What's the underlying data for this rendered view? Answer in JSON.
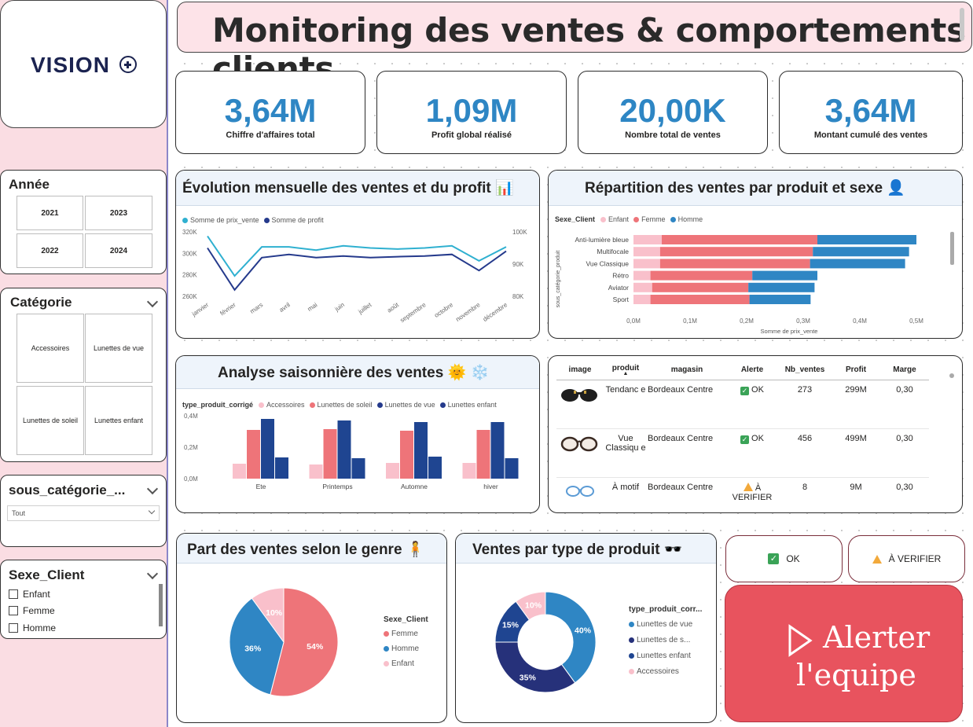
{
  "logo": {
    "text": "VISION"
  },
  "title": "Monitoring des ventes & comportements clients",
  "filters": {
    "annee": {
      "title": "Année",
      "options": [
        "2021",
        "2023",
        "2022",
        "2024"
      ]
    },
    "categorie": {
      "title": "Catégorie",
      "options": [
        "Accessoires",
        "Lunettes de vue",
        "Lunettes de soleil",
        "Lunettes enfant"
      ]
    },
    "sous_categorie": {
      "title": "sous_catégorie_...",
      "value": "Tout"
    },
    "sexe": {
      "title": "Sexe_Client",
      "options": [
        "Enfant",
        "Femme",
        "Homme"
      ]
    }
  },
  "kpis": [
    {
      "value": "3,64M",
      "label": "Chiffre d'affaires total"
    },
    {
      "value": "1,09M",
      "label": "Profit global réalisé"
    },
    {
      "value": "20,00K",
      "label": "Nombre total de ventes"
    },
    {
      "value": "3,64M",
      "label": "Montant cumulé des ventes"
    }
  ],
  "visual_titles": {
    "evolution": "Évolution mensuelle des ventes et du profit 📊",
    "repartition": "Répartition des ventes par produit et sexe 👤",
    "saison": "Analyse saisonnière des ventes 🌞 ❄️",
    "genre": "Part des ventes selon le genre 🧍",
    "type": "Ventes par type de produit 🕶️"
  },
  "colors": {
    "kpi_blue": "#2e86c4",
    "prix": "#2fb0d0",
    "profit": "#253a8c",
    "enfant": "#f9c0cb",
    "femme": "#ee7479",
    "homme": "#2f86c4",
    "accessoires": "#f9c0cb",
    "soleil": "#ee7479",
    "vue": "#1f4591",
    "enfant_type": "#1f4591",
    "alert": "#e8535e"
  },
  "chart_data": [
    {
      "type": "line",
      "legend": [
        "Somme de prix_vente",
        "Somme de profit"
      ],
      "categories": [
        "janvier",
        "février",
        "mars",
        "avril",
        "mai",
        "juin",
        "juillet",
        "août",
        "septembre",
        "octobre",
        "novembre",
        "décembre"
      ],
      "series": [
        {
          "name": "Somme de prix_vente",
          "axis": "left",
          "values": [
            316,
            279,
            306,
            306,
            303,
            307,
            305,
            304,
            305,
            307,
            293,
            306
          ]
        },
        {
          "name": "Somme de profit",
          "axis": "right",
          "values": [
            95,
            82,
            92,
            93,
            92,
            92.5,
            92,
            92.3,
            92.5,
            93,
            88,
            94
          ]
        }
      ],
      "y_left_ticks": [
        "320K",
        "300K",
        "280K",
        "260K"
      ],
      "y_left_range": [
        260,
        320
      ],
      "y_right_ticks": [
        "100K",
        "90K",
        "80K"
      ],
      "y_right_range": [
        80,
        100
      ]
    },
    {
      "type": "bar",
      "orientation": "horizontal-stacked",
      "legend_title": "Sexe_Client",
      "legend": [
        "Enfant",
        "Femme",
        "Homme"
      ],
      "categories": [
        "Anti-lumière bleue",
        "Multifocale",
        "Vue Classique",
        "Rétro",
        "Aviator",
        "Sport"
      ],
      "series": [
        {
          "name": "Enfant",
          "values": [
            0.05,
            0.047,
            0.047,
            0.03,
            0.033,
            0.03
          ]
        },
        {
          "name": "Femme",
          "values": [
            0.275,
            0.27,
            0.265,
            0.18,
            0.17,
            0.175
          ]
        },
        {
          "name": "Homme",
          "values": [
            0.175,
            0.17,
            0.168,
            0.115,
            0.117,
            0.108
          ]
        }
      ],
      "x_ticks": [
        "0,0M",
        "0,1M",
        "0,2M",
        "0,3M",
        "0,4M",
        "0,5M"
      ],
      "xlim": [
        0,
        0.5
      ],
      "xlabel": "Somme de prix_vente",
      "ylabel": "sous_catégorie_produit"
    },
    {
      "type": "bar",
      "legend_title": "type_produit_corrigé",
      "legend": [
        "Accessoires",
        "Lunettes de soleil",
        "Lunettes de vue",
        "Lunettes enfant"
      ],
      "categories": [
        "Ete",
        "Printemps",
        "Automne",
        "hiver"
      ],
      "series": [
        {
          "name": "Accessoires",
          "values": [
            0.095,
            0.09,
            0.1,
            0.1
          ]
        },
        {
          "name": "Lunettes de soleil",
          "values": [
            0.31,
            0.315,
            0.305,
            0.31
          ]
        },
        {
          "name": "Lunettes de vue",
          "values": [
            0.38,
            0.37,
            0.36,
            0.36
          ]
        },
        {
          "name": "Lunettes enfant",
          "values": [
            0.135,
            0.13,
            0.14,
            0.13
          ]
        }
      ],
      "y_ticks": [
        "0,4M",
        "0,2M",
        "0,0M"
      ],
      "ylim": [
        0,
        0.4
      ]
    },
    {
      "type": "pie",
      "legend_title": "Sexe_Client",
      "legend": [
        "Femme",
        "Homme",
        "Enfant"
      ],
      "labels": [
        "Femme",
        "Homme",
        "Enfant"
      ],
      "values": [
        54,
        36,
        10
      ],
      "value_labels": [
        "54%",
        "36%",
        "10%"
      ]
    },
    {
      "type": "pie",
      "subtype": "donut",
      "legend_title": "type_produit_corr...",
      "legend": [
        "Lunettes de vue",
        "Lunettes de s...",
        "Lunettes enfant",
        "Accessoires"
      ],
      "labels": [
        "Lunettes de vue",
        "Lunettes de soleil",
        "Lunettes enfant",
        "Accessoires"
      ],
      "values": [
        40,
        35,
        15,
        10
      ],
      "value_labels": [
        "40%",
        "35%",
        "15%",
        "10%"
      ]
    }
  ],
  "table": {
    "headers": [
      "image",
      "produit",
      "magasin",
      "Alerte",
      "Nb_ventes",
      "Profit",
      "Marge"
    ],
    "rows": [
      {
        "produit": "Tendanc e",
        "magasin": "Bordeaux Centre",
        "alerte": "OK",
        "nb": "273",
        "profit": "299M",
        "marge": "0,30"
      },
      {
        "produit": "Vue Classiqu e",
        "magasin": "Bordeaux Centre",
        "alerte": "OK",
        "nb": "456",
        "profit": "499M",
        "marge": "0,30"
      },
      {
        "produit": "À motif",
        "magasin": "Bordeaux Centre",
        "alerte": "À VERIFIER",
        "nb": "8",
        "profit": "9M",
        "marge": "0,30"
      }
    ]
  },
  "buttons": {
    "ok": "OK",
    "verifier": "À VERIFIER",
    "alert_line1": "Alerter",
    "alert_line2": "l'equipe"
  }
}
